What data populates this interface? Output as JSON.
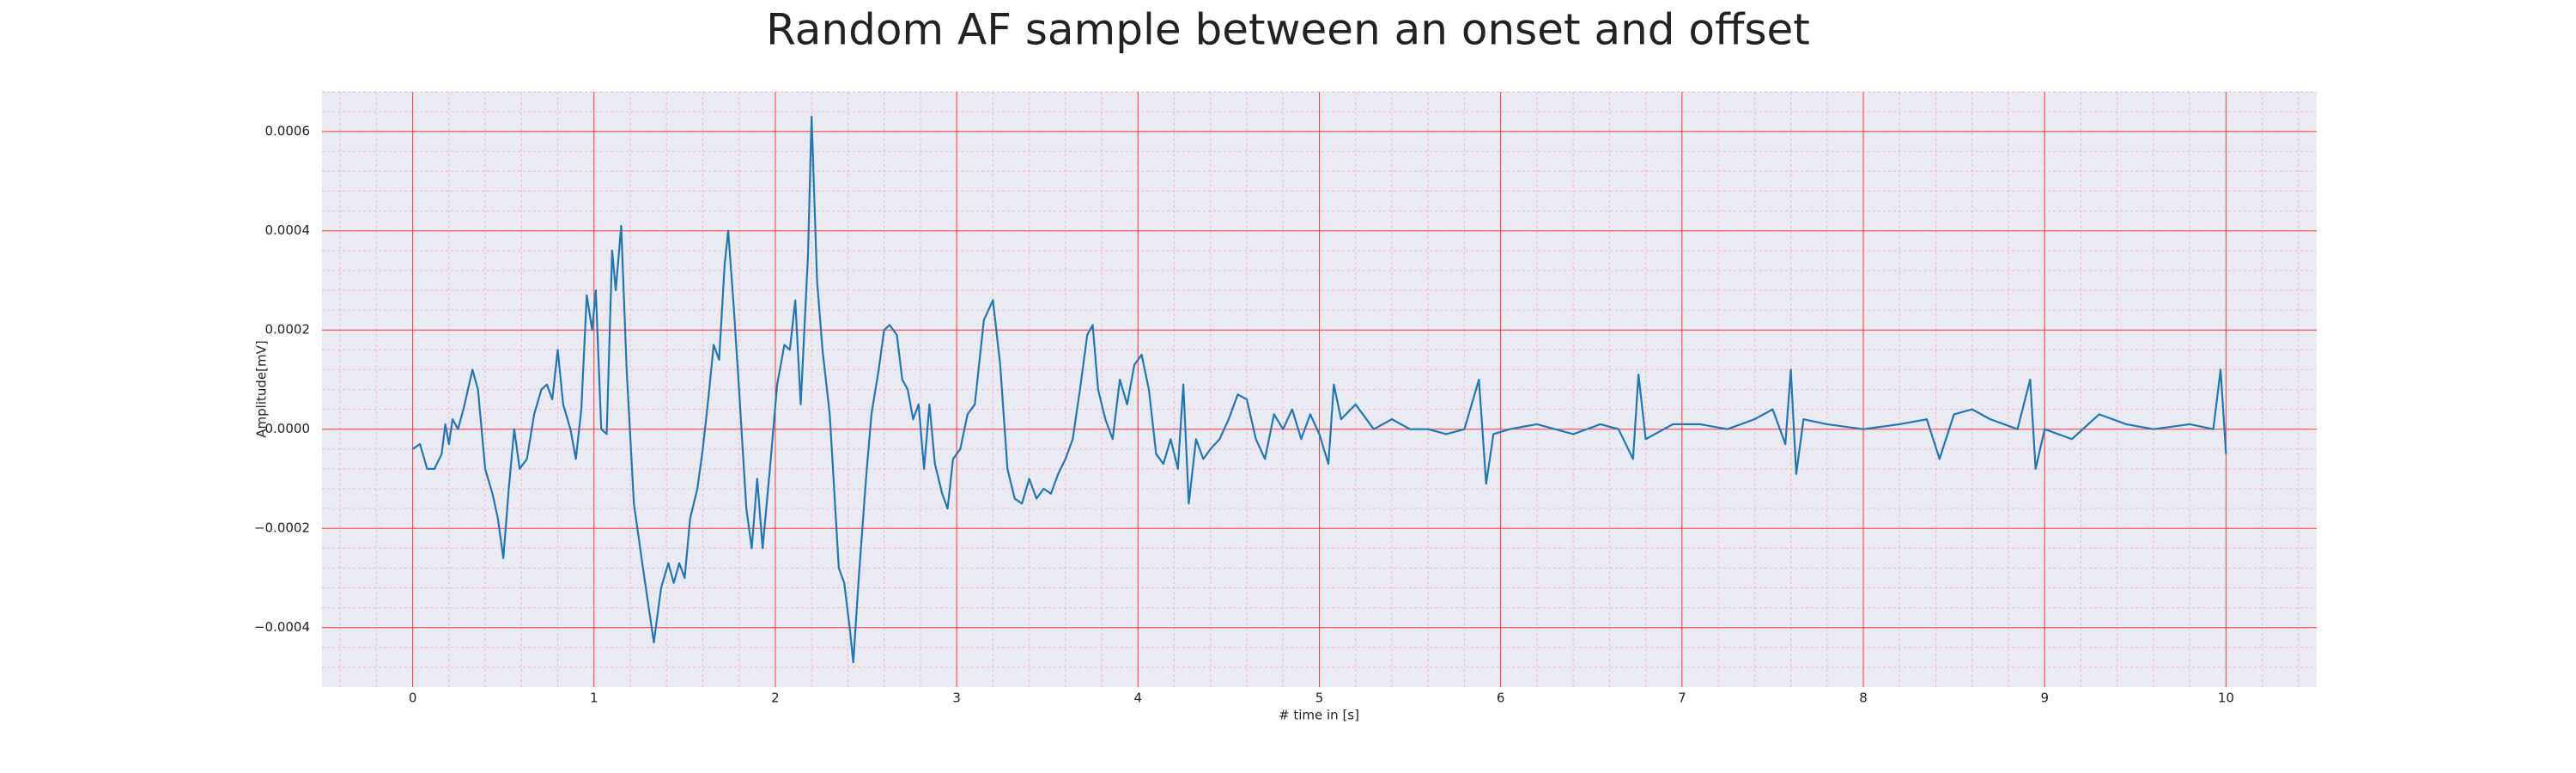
{
  "chart_data": {
    "type": "line",
    "title": "Random AF sample between an onset and offset",
    "x_label": "# time in [s]",
    "y_label": "Amplitude[mV]",
    "xlim": [
      -0.5,
      10.5
    ],
    "ylim": [
      -0.00052,
      0.00068
    ],
    "xticks": [
      0,
      1,
      2,
      3,
      4,
      5,
      6,
      7,
      8,
      9,
      10
    ],
    "yticks": [
      {
        "value": -0.0004,
        "label": "−0.0004"
      },
      {
        "value": -0.0002,
        "label": "−0.0002"
      },
      {
        "value": 0,
        "label": "0.0000"
      },
      0.0002,
      0.0004,
      0.0006
    ],
    "grid": true,
    "minor_grid": true,
    "grid_color": "#ff3b3b",
    "minor_grid_color": "#f4b6c2",
    "background": "#eaeaf2",
    "series": [
      {
        "name": "AF sample",
        "color": "#1f77b4",
        "x": [
          0,
          0.04,
          0.08,
          0.12,
          0.16,
          0.18,
          0.2,
          0.22,
          0.25,
          0.28,
          0.33,
          0.36,
          0.4,
          0.44,
          0.47,
          0.5,
          0.53,
          0.56,
          0.59,
          0.63,
          0.67,
          0.71,
          0.74,
          0.77,
          0.8,
          0.83,
          0.87,
          0.9,
          0.93,
          0.96,
          0.99,
          1.01,
          1.04,
          1.07,
          1.1,
          1.12,
          1.15,
          1.18,
          1.22,
          1.27,
          1.33,
          1.37,
          1.41,
          1.44,
          1.47,
          1.5,
          1.53,
          1.57,
          1.6,
          1.63,
          1.66,
          1.69,
          1.72,
          1.74,
          1.77,
          1.8,
          1.84,
          1.87,
          1.9,
          1.93,
          1.97,
          2.01,
          2.05,
          2.08,
          2.11,
          2.14,
          2.18,
          2.2,
          2.23,
          2.26,
          2.3,
          2.35,
          2.38,
          2.41,
          2.43,
          2.46,
          2.5,
          2.53,
          2.57,
          2.6,
          2.63,
          2.67,
          2.7,
          2.73,
          2.76,
          2.79,
          2.82,
          2.85,
          2.88,
          2.92,
          2.95,
          2.98,
          3.02,
          3.06,
          3.1,
          3.15,
          3.2,
          3.24,
          3.28,
          3.32,
          3.36,
          3.4,
          3.44,
          3.48,
          3.52,
          3.56,
          3.6,
          3.64,
          3.68,
          3.72,
          3.75,
          3.78,
          3.82,
          3.86,
          3.9,
          3.94,
          3.98,
          4.02,
          4.06,
          4.1,
          4.14,
          4.18,
          4.22,
          4.25,
          4.28,
          4.32,
          4.36,
          4.4,
          4.45,
          4.5,
          4.55,
          4.6,
          4.65,
          4.7,
          4.75,
          4.8,
          4.85,
          4.9,
          4.95,
          5.0,
          5.05,
          5.08,
          5.12,
          5.2,
          5.3,
          5.4,
          5.5,
          5.6,
          5.7,
          5.8,
          5.88,
          5.92,
          5.96,
          6.05,
          6.2,
          6.4,
          6.55,
          6.65,
          6.73,
          6.76,
          6.8,
          6.95,
          7.1,
          7.25,
          7.4,
          7.5,
          7.57,
          7.6,
          7.63,
          7.67,
          7.8,
          8.0,
          8.2,
          8.35,
          8.42,
          8.5,
          8.6,
          8.7,
          8.85,
          8.92,
          8.95,
          9.0,
          9.15,
          9.3,
          9.45,
          9.6,
          9.8,
          9.93,
          9.97,
          10.0
        ],
        "values": [
          -4e-05,
          -3e-05,
          -8e-05,
          -8e-05,
          -5e-05,
          1e-05,
          -3e-05,
          2e-05,
          0.0,
          4e-05,
          0.00012,
          8e-05,
          -8e-05,
          -0.00013,
          -0.00018,
          -0.00026,
          -0.00012,
          0.0,
          -8e-05,
          -6e-05,
          3e-05,
          8e-05,
          9e-05,
          6e-05,
          0.00016,
          5e-05,
          0.0,
          -6e-05,
          4e-05,
          0.00027,
          0.0002,
          0.00028,
          0.0,
          -1e-05,
          0.00036,
          0.00028,
          0.00041,
          0.00012,
          -0.00015,
          -0.00028,
          -0.00043,
          -0.00032,
          -0.00027,
          -0.00031,
          -0.00027,
          -0.0003,
          -0.00018,
          -0.00012,
          -4e-05,
          6e-05,
          0.00017,
          0.00014,
          0.00033,
          0.0004,
          0.00025,
          8e-05,
          -0.00016,
          -0.00024,
          -0.0001,
          -0.00024,
          -8e-05,
          9e-05,
          0.00017,
          0.00016,
          0.00026,
          5e-05,
          0.00035,
          0.00063,
          0.0003,
          0.00016,
          3e-05,
          -0.00028,
          -0.00031,
          -0.0004,
          -0.00047,
          -0.0003,
          -0.0001,
          3e-05,
          0.00012,
          0.0002,
          0.00021,
          0.00019,
          0.0001,
          8e-05,
          2e-05,
          5e-05,
          -8e-05,
          5e-05,
          -7e-05,
          -0.00013,
          -0.00016,
          -6e-05,
          -4e-05,
          3e-05,
          5e-05,
          0.00022,
          0.00026,
          0.00013,
          -8e-05,
          -0.00014,
          -0.00015,
          -0.0001,
          -0.00014,
          -0.00012,
          -0.00013,
          -9e-05,
          -6e-05,
          -2e-05,
          8e-05,
          0.00019,
          0.00021,
          8e-05,
          2e-05,
          -2e-05,
          0.0001,
          5e-05,
          0.00013,
          0.00015,
          8e-05,
          -5e-05,
          -7e-05,
          -2e-05,
          -8e-05,
          9e-05,
          -0.00015,
          -2e-05,
          -6e-05,
          -4e-05,
          -2e-05,
          2e-05,
          7e-05,
          6e-05,
          -2e-05,
          -6e-05,
          3e-05,
          0.0,
          4e-05,
          -2e-05,
          3e-05,
          -1e-05,
          -7e-05,
          9e-05,
          2e-05,
          5e-05,
          0.0,
          2e-05,
          0.0,
          0.0,
          -1e-05,
          0.0,
          0.0001,
          -0.00011,
          -1e-05,
          0.0,
          1e-05,
          -1e-05,
          1e-05,
          0.0,
          -6e-05,
          0.00011,
          -2e-05,
          1e-05,
          1e-05,
          0.0,
          2e-05,
          4e-05,
          -3e-05,
          0.00012,
          -9e-05,
          2e-05,
          1e-05,
          0.0,
          1e-05,
          2e-05,
          -6e-05,
          3e-05,
          4e-05,
          2e-05,
          0.0,
          0.0001,
          -8e-05,
          0.0,
          -2e-05,
          3e-05,
          1e-05,
          0.0,
          1e-05,
          0.0,
          0.00012,
          -5e-05
        ]
      }
    ]
  }
}
